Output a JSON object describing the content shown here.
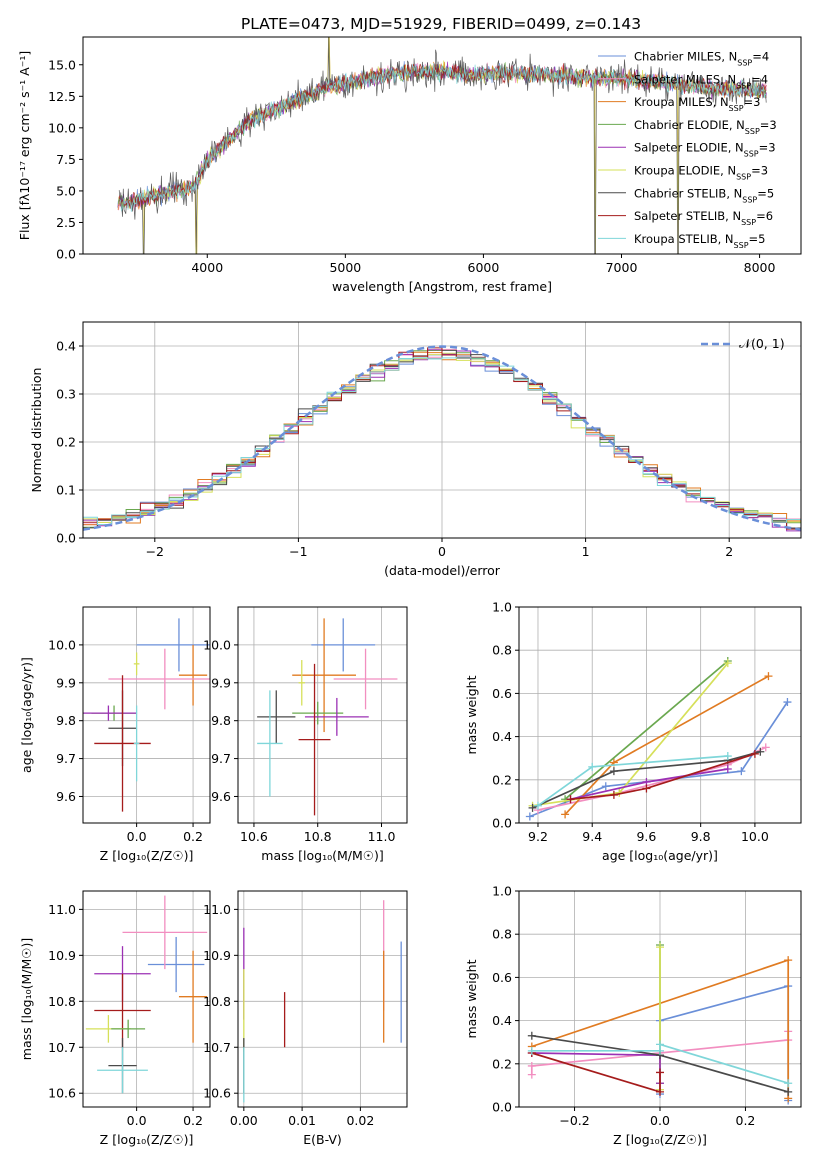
{
  "figure_title": "PLATE=0473, MJD=51929, FIBERID=0499, z=0.143",
  "series_legend": [
    {
      "label": "Chabrier MILES, N",
      "sub": "SSP",
      "tail": "=4",
      "color": "#6a8fd8"
    },
    {
      "label": "Salpeter MILES, N",
      "sub": "SSP",
      "tail": "=4",
      "color": "#f28ec0"
    },
    {
      "label": "Kroupa MILES, N",
      "sub": "SSP",
      "tail": "=3",
      "color": "#e07b22"
    },
    {
      "label": "Chabrier ELODIE, N",
      "sub": "SSP",
      "tail": "=3",
      "color": "#6aa84f"
    },
    {
      "label": "Salpeter ELODIE, N",
      "sub": "SSP",
      "tail": "=3",
      "color": "#9b30b4"
    },
    {
      "label": "Kroupa ELODIE, N",
      "sub": "SSP",
      "tail": "=3",
      "color": "#d6e05a"
    },
    {
      "label": "Chabrier STELIB, N",
      "sub": "SSP",
      "tail": "=5",
      "color": "#4a4a4a"
    },
    {
      "label": "Salpeter STELIB, N",
      "sub": "SSP",
      "tail": "=6",
      "color": "#a51c1c"
    },
    {
      "label": "Kroupa STELIB, N",
      "sub": "SSP",
      "tail": "=5",
      "color": "#7fd6d9"
    }
  ],
  "chart_data": [
    {
      "id": "spectrum",
      "type": "line",
      "xlabel": "wavelength [Angstrom, rest frame]",
      "ylabel": "Flux [fλ10⁻¹⁷ erg cm⁻² s⁻¹ A⁻¹]",
      "xlim": [
        3100,
        8300
      ],
      "ylim": [
        0,
        17.2
      ],
      "xticks": [
        4000,
        5000,
        6000,
        7000,
        8000
      ],
      "yticks": [
        0.0,
        2.5,
        5.0,
        7.5,
        10.0,
        12.5,
        15.0
      ],
      "continuum": [
        [
          3350,
          4.0
        ],
        [
          3500,
          4.3
        ],
        [
          3700,
          4.8
        ],
        [
          3900,
          5.3
        ],
        [
          4000,
          7.5
        ],
        [
          4100,
          8.5
        ],
        [
          4300,
          10.5
        ],
        [
          4500,
          11.5
        ],
        [
          4700,
          12.5
        ],
        [
          4900,
          13.3
        ],
        [
          5100,
          13.8
        ],
        [
          5300,
          14.2
        ],
        [
          5500,
          14.5
        ],
        [
          5700,
          14.5
        ],
        [
          5900,
          14.2
        ],
        [
          6100,
          14.4
        ],
        [
          6300,
          14.3
        ],
        [
          6500,
          14.2
        ],
        [
          6700,
          14.0
        ],
        [
          6900,
          13.9
        ],
        [
          7100,
          13.8
        ],
        [
          7300,
          13.6
        ],
        [
          7500,
          13.3
        ],
        [
          7700,
          13.1
        ],
        [
          8050,
          13.0
        ]
      ],
      "wavelength_range": [
        3350,
        8050
      ],
      "spikes": [
        [
          3540,
          0.0
        ],
        [
          3920,
          0.0
        ],
        [
          4880,
          17.2
        ],
        [
          6810,
          0.0
        ],
        [
          7410,
          0.0
        ]
      ]
    },
    {
      "id": "residuals",
      "type": "line",
      "xlabel": "(data-model)/error",
      "ylabel": "Normed distribution",
      "xlim": [
        -2.5,
        2.5
      ],
      "ylim": [
        0,
        0.45
      ],
      "xticks": [
        -2,
        -1,
        0,
        1,
        2
      ],
      "yticks": [
        0.0,
        0.1,
        0.2,
        0.3,
        0.4
      ],
      "histogram_bins": {
        "start": -2.5,
        "width": 0.1,
        "count": 50
      },
      "normal_curve": {
        "label": "𝒩(0, 1)",
        "mean": 0,
        "sigma": 1,
        "color": "#6a8fd8",
        "style": "dashed"
      }
    },
    {
      "id": "age_vs_Z",
      "type": "scatter",
      "xlabel": "Z [log₁₀(Z/Z☉)]",
      "ylabel": "age  [log₁₀(age/yr)]",
      "xlim": [
        -0.19,
        0.26
      ],
      "ylim": [
        9.53,
        10.1
      ],
      "xticks": [
        0.0,
        0.2
      ],
      "xtick_labels": [
        "0.0",
        "0.2"
      ],
      "yticks": [
        9.6,
        9.7,
        9.8,
        9.9,
        10.0
      ],
      "errorbars": [
        {
          "color": "#6a8fd8",
          "x": 0.15,
          "y": 10.0,
          "xerr": 0.15,
          "yerr": 0.07
        },
        {
          "color": "#e07b22",
          "x": 0.2,
          "y": 9.92,
          "xerr": 0.05,
          "yerr": 0.08
        },
        {
          "color": "#f28ec0",
          "x": 0.1,
          "y": 9.91,
          "xerr": 0.2,
          "yerr": 0.08
        },
        {
          "color": "#d6e05a",
          "x": 0.0,
          "y": 9.95,
          "xerr": 0.01,
          "yerr": 0.03
        },
        {
          "color": "#6aa84f",
          "x": -0.08,
          "y": 9.82,
          "xerr": 0.08,
          "yerr": 0.02
        },
        {
          "color": "#9b30b4",
          "x": -0.1,
          "y": 9.82,
          "xerr": 0.1,
          "yerr": 0.02
        },
        {
          "color": "#4a4a4a",
          "x": -0.05,
          "y": 9.78,
          "xerr": 0.05,
          "yerr": 0.1
        },
        {
          "color": "#a51c1c",
          "x": -0.05,
          "y": 9.74,
          "xerr": 0.1,
          "yerr": 0.18
        },
        {
          "color": "#7fd6d9",
          "x": 0.0,
          "y": 9.74,
          "xerr": 0.01,
          "yerr": 0.1
        }
      ]
    },
    {
      "id": "age_vs_mass",
      "type": "scatter",
      "xlabel": "mass [log₁₀(M/M☉)]",
      "ylabel": "",
      "xlim": [
        10.55,
        11.08
      ],
      "ylim": [
        9.53,
        10.1
      ],
      "xticks": [
        10.6,
        10.8,
        11.0
      ],
      "xtick_labels": [
        "10.6",
        "10.8",
        "11.0"
      ],
      "yticks": [
        9.6,
        9.7,
        9.8,
        9.9,
        10.0
      ],
      "errorbars": [
        {
          "color": "#6a8fd8",
          "x": 10.88,
          "y": 10.0,
          "xerr": 0.1,
          "yerr": 0.07
        },
        {
          "color": "#e07b22",
          "x": 10.82,
          "y": 9.92,
          "xerr": 0.1,
          "yerr": 0.15
        },
        {
          "color": "#f28ec0",
          "x": 10.95,
          "y": 9.91,
          "xerr": 0.1,
          "yerr": 0.08
        },
        {
          "color": "#d6e05a",
          "x": 10.75,
          "y": 9.9,
          "xerr": 0.01,
          "yerr": 0.06
        },
        {
          "color": "#6aa84f",
          "x": 10.8,
          "y": 9.82,
          "xerr": 0.08,
          "yerr": 0.03
        },
        {
          "color": "#9b30b4",
          "x": 10.86,
          "y": 9.81,
          "xerr": 0.1,
          "yerr": 0.05
        },
        {
          "color": "#4a4a4a",
          "x": 10.67,
          "y": 9.81,
          "xerr": 0.06,
          "yerr": 0.07
        },
        {
          "color": "#a51c1c",
          "x": 10.79,
          "y": 9.75,
          "xerr": 0.05,
          "yerr": 0.2
        },
        {
          "color": "#7fd6d9",
          "x": 10.65,
          "y": 9.74,
          "xerr": 0.04,
          "yerr": 0.14
        }
      ]
    },
    {
      "id": "weight_vs_age",
      "type": "line",
      "xlabel": "age  [log₁₀(age/yr)]",
      "ylabel": "mass weight",
      "xlim": [
        9.13,
        10.17
      ],
      "ylim": [
        0,
        1.0
      ],
      "xticks": [
        9.2,
        9.4,
        9.6,
        9.8,
        10.0
      ],
      "xtick_labels": [
        "9.2",
        "9.4",
        "9.6",
        "9.8",
        "10.0"
      ],
      "yticks": [
        0.0,
        0.2,
        0.4,
        0.6,
        0.8,
        1.0
      ],
      "series": [
        {
          "color": "#6a8fd8",
          "points": [
            [
              9.17,
              0.03
            ],
            [
              9.45,
              0.17
            ],
            [
              9.95,
              0.24
            ],
            [
              10.12,
              0.56
            ]
          ]
        },
        {
          "color": "#f28ec0",
          "points": [
            [
              9.2,
              0.06
            ],
            [
              9.5,
              0.14
            ],
            [
              9.9,
              0.27
            ],
            [
              10.04,
              0.35
            ]
          ]
        },
        {
          "color": "#e07b22",
          "points": [
            [
              9.3,
              0.04
            ],
            [
              9.48,
              0.28
            ],
            [
              10.05,
              0.68
            ]
          ]
        },
        {
          "color": "#6aa84f",
          "points": [
            [
              9.3,
              0.11
            ],
            [
              9.9,
              0.75
            ]
          ]
        },
        {
          "color": "#d6e05a",
          "points": [
            [
              9.18,
              0.08
            ],
            [
              9.5,
              0.14
            ],
            [
              9.9,
              0.74
            ]
          ]
        },
        {
          "color": "#9b30b4",
          "points": [
            [
              9.32,
              0.11
            ],
            [
              9.6,
              0.19
            ],
            [
              9.9,
              0.25
            ]
          ]
        },
        {
          "color": "#4a4a4a",
          "points": [
            [
              9.18,
              0.07
            ],
            [
              9.48,
              0.24
            ],
            [
              9.9,
              0.29
            ],
            [
              10.02,
              0.33
            ]
          ]
        },
        {
          "color": "#a51c1c",
          "points": [
            [
              9.32,
              0.11
            ],
            [
              9.48,
              0.13
            ],
            [
              9.6,
              0.16
            ],
            [
              10.0,
              0.32
            ]
          ]
        },
        {
          "color": "#7fd6d9",
          "points": [
            [
              9.2,
              0.08
            ],
            [
              9.4,
              0.26
            ],
            [
              9.9,
              0.31
            ]
          ]
        }
      ]
    },
    {
      "id": "mass_vs_Z",
      "type": "scatter",
      "xlabel": "Z [log₁₀(Z/Z☉)]",
      "ylabel": "mass [log₁₀(M/M☉)]",
      "xlim": [
        -0.19,
        0.26
      ],
      "ylim": [
        10.57,
        11.04
      ],
      "xticks": [
        0.0,
        0.2
      ],
      "xtick_labels": [
        "0.0",
        "0.2"
      ],
      "yticks": [
        10.6,
        10.7,
        10.8,
        10.9,
        11.0
      ],
      "errorbars": [
        {
          "color": "#6a8fd8",
          "x": 0.14,
          "y": 10.88,
          "xerr": 0.1,
          "yerr": 0.06
        },
        {
          "color": "#e07b22",
          "x": 0.2,
          "y": 10.81,
          "xerr": 0.05,
          "yerr": 0.1
        },
        {
          "color": "#f28ec0",
          "x": 0.1,
          "y": 10.95,
          "xerr": 0.15,
          "yerr": 0.08
        },
        {
          "color": "#9b30b4",
          "x": -0.05,
          "y": 10.86,
          "xerr": 0.1,
          "yerr": 0.06
        },
        {
          "color": "#a51c1c",
          "x": -0.05,
          "y": 10.78,
          "xerr": 0.1,
          "yerr": 0.08
        },
        {
          "color": "#d6e05a",
          "x": -0.1,
          "y": 10.74,
          "xerr": 0.08,
          "yerr": 0.03
        },
        {
          "color": "#6aa84f",
          "x": -0.03,
          "y": 10.74,
          "xerr": 0.06,
          "yerr": 0.02
        },
        {
          "color": "#4a4a4a",
          "x": -0.05,
          "y": 10.66,
          "xerr": 0.05,
          "yerr": 0.06
        },
        {
          "color": "#7fd6d9",
          "x": -0.05,
          "y": 10.65,
          "xerr": 0.09,
          "yerr": 0.05
        }
      ]
    },
    {
      "id": "mass_vs_EBV",
      "type": "scatter",
      "xlabel": "E(B-V)",
      "ylabel": "",
      "xlim": [
        -0.001,
        0.028
      ],
      "ylim": [
        10.57,
        11.04
      ],
      "xticks": [
        0.0,
        0.01,
        0.02
      ],
      "xtick_labels": [
        "0.00",
        "0.01",
        "0.02"
      ],
      "yticks": [
        10.6,
        10.7,
        10.8,
        10.9,
        11.0
      ],
      "errorbars": [
        {
          "color": "#6a8fd8",
          "x": 0.027,
          "y": 10.82,
          "xerr": 0,
          "yerr": 0.11
        },
        {
          "color": "#f28ec0",
          "x": 0.024,
          "y": 10.9,
          "xerr": 0,
          "yerr": 0.12
        },
        {
          "color": "#e07b22",
          "x": 0.024,
          "y": 10.81,
          "xerr": 0,
          "yerr": 0.1
        },
        {
          "color": "#a51c1c",
          "x": 0.007,
          "y": 10.76,
          "xerr": 0,
          "yerr": 0.06
        },
        {
          "color": "#9b30b4",
          "x": 0.0,
          "y": 10.86,
          "xerr": 0,
          "yerr": 0.1
        },
        {
          "color": "#d6e05a",
          "x": 0.0,
          "y": 10.78,
          "xerr": 0,
          "yerr": 0.09
        },
        {
          "color": "#4a4a4a",
          "x": 0.0,
          "y": 10.66,
          "xerr": 0,
          "yerr": 0.06
        },
        {
          "color": "#7fd6d9",
          "x": 0.0,
          "y": 10.64,
          "xerr": 0,
          "yerr": 0.06
        }
      ]
    },
    {
      "id": "weight_vs_Z",
      "type": "line",
      "xlabel": "Z [log₁₀(Z/Z☉)]",
      "ylabel": "mass weight",
      "xlim": [
        -0.33,
        0.33
      ],
      "ylim": [
        0,
        1.0
      ],
      "xticks": [
        -0.2,
        0.0,
        0.2
      ],
      "xtick_labels": [
        "−0.2",
        "0.0",
        "0.2"
      ],
      "yticks": [
        0.0,
        0.2,
        0.4,
        0.6,
        0.8,
        1.0
      ],
      "series": [
        {
          "color": "#6a8fd8",
          "points": [
            [
              0.0,
              0.06
            ],
            [
              0.0,
              0.4
            ],
            [
              0.3,
              0.56
            ],
            [
              0.3,
              0.03
            ]
          ]
        },
        {
          "color": "#f28ec0",
          "points": [
            [
              -0.3,
              0.15
            ],
            [
              -0.3,
              0.19
            ],
            [
              0.3,
              0.31
            ],
            [
              0.3,
              0.35
            ]
          ]
        },
        {
          "color": "#e07b22",
          "points": [
            [
              -0.3,
              0.28
            ],
            [
              0.3,
              0.68
            ],
            [
              0.3,
              0.04
            ]
          ]
        },
        {
          "color": "#6aa84f",
          "points": [
            [
              0.0,
              0.11
            ],
            [
              0.0,
              0.75
            ]
          ]
        },
        {
          "color": "#d6e05a",
          "points": [
            [
              0.0,
              0.08
            ],
            [
              0.0,
              0.74
            ]
          ]
        },
        {
          "color": "#9b30b4",
          "points": [
            [
              -0.3,
              0.25
            ],
            [
              0.0,
              0.24
            ],
            [
              0.0,
              0.11
            ]
          ]
        },
        {
          "color": "#4a4a4a",
          "points": [
            [
              -0.3,
              0.33
            ],
            [
              0.0,
              0.24
            ],
            [
              0.3,
              0.07
            ]
          ]
        },
        {
          "color": "#a51c1c",
          "points": [
            [
              -0.3,
              0.25
            ],
            [
              0.0,
              0.07
            ],
            [
              0.0,
              0.16
            ]
          ]
        },
        {
          "color": "#7fd6d9",
          "points": [
            [
              -0.3,
              0.26
            ],
            [
              0.0,
              0.26
            ],
            [
              0.0,
              0.29
            ],
            [
              0.3,
              0.11
            ]
          ]
        }
      ]
    }
  ]
}
